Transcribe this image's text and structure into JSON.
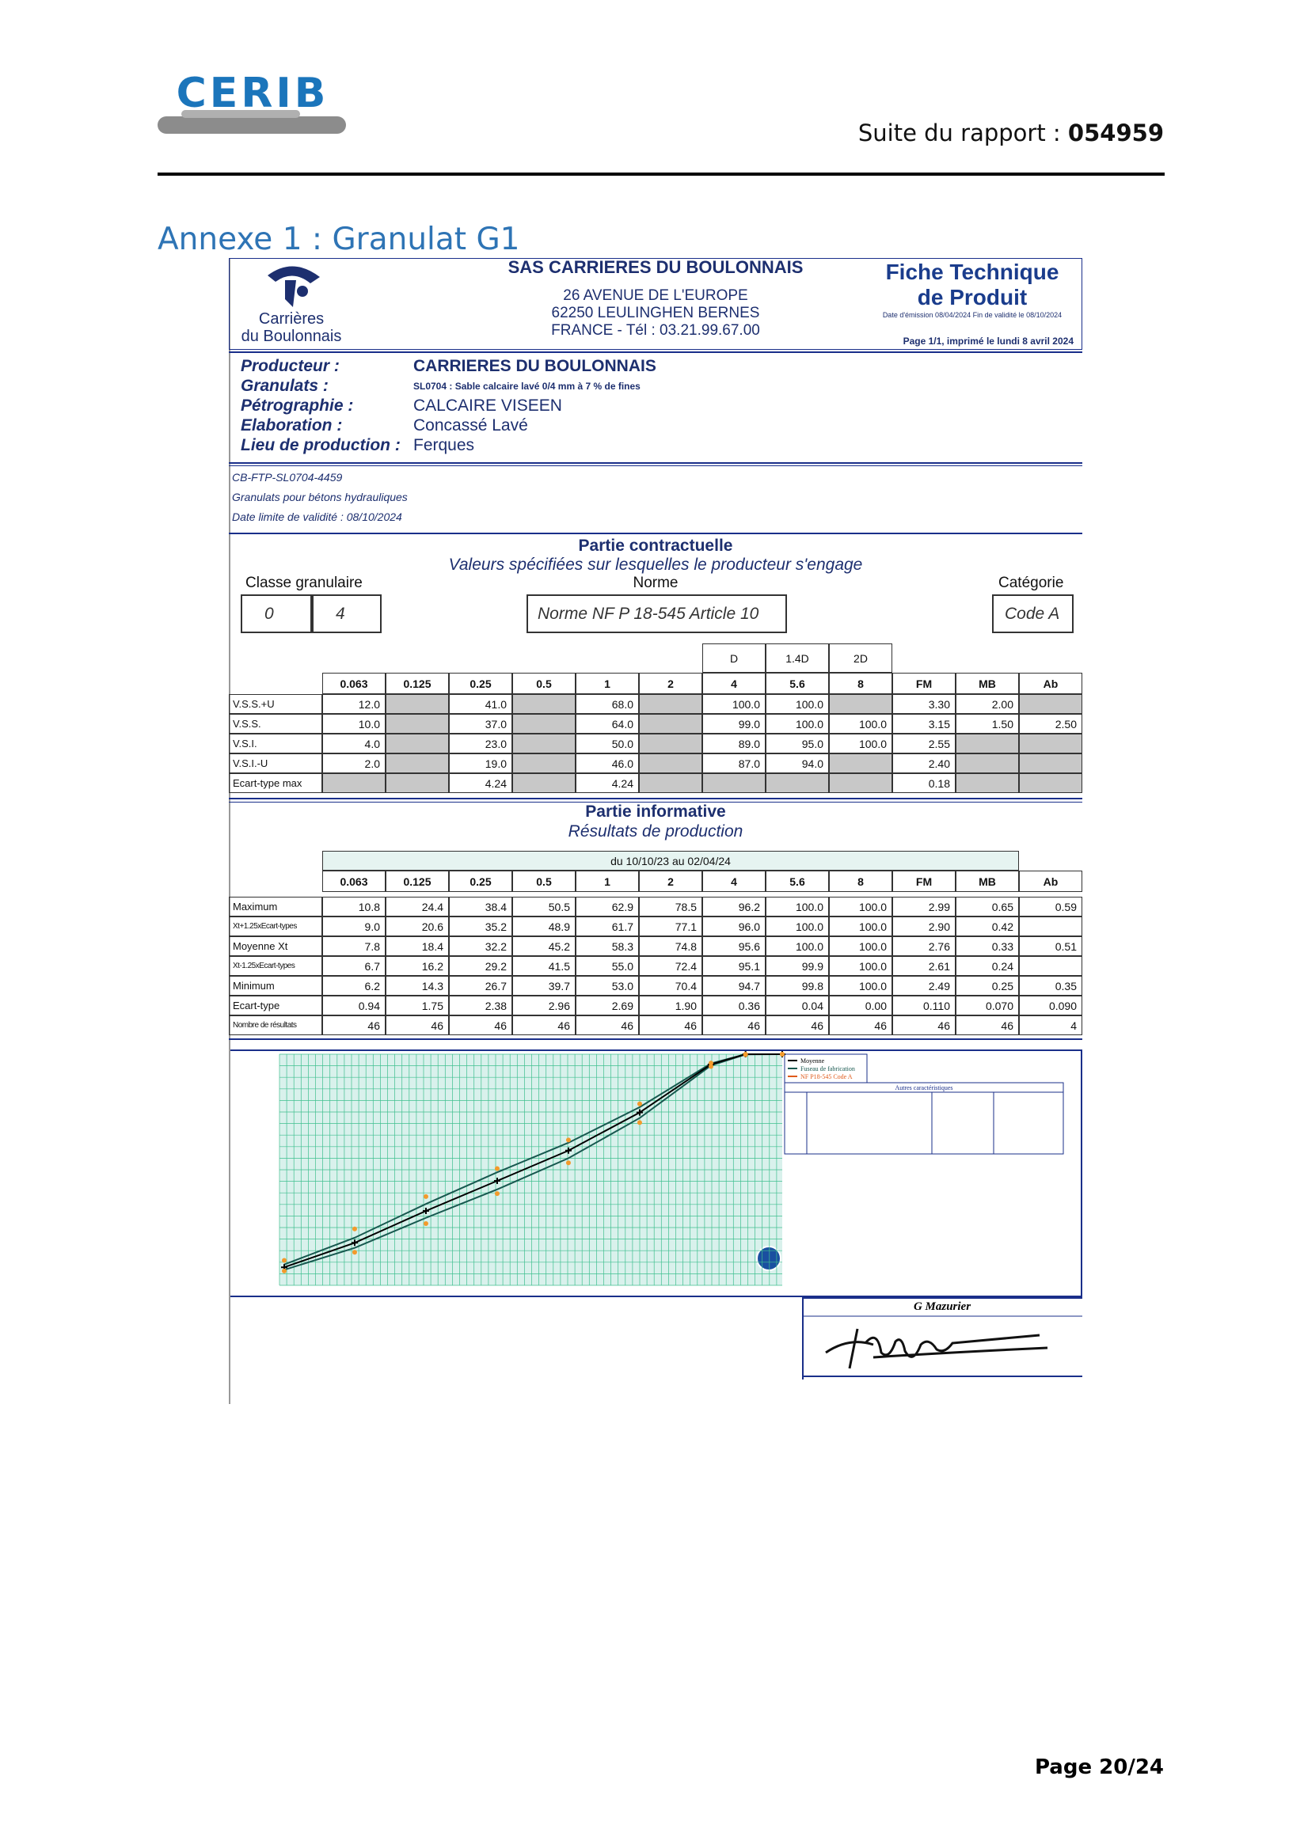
{
  "header": {
    "logo": "CERIB",
    "report_label": "Suite du rapport :",
    "report_number": "054959"
  },
  "annex_title": "Annexe 1 : Granulat G1",
  "sheet": {
    "company_logo": [
      "Carrières",
      "du Boulonnais"
    ],
    "company_name": "SAS CARRIERES DU BOULONNAIS",
    "address": [
      "26 AVENUE DE L'EUROPE",
      "62250 LEULINGHEN BERNES",
      "FRANCE - Tél : 03.21.99.67.00"
    ],
    "doc_title": [
      "Fiche Technique",
      "de Produit"
    ],
    "dates": "Date d'émission 08/04/2024   Fin de validité le 08/10/2024",
    "printed": "Page 1/1, imprimé le lundi 8 avril 2024",
    "product": [
      {
        "label": "Producteur :",
        "value": "CARRIERES DU BOULONNAIS"
      },
      {
        "label": "Granulats :",
        "value": "SL0704 : Sable calcaire lavé 0/4 mm à 7 % de fines"
      },
      {
        "label": "Pétrographie :",
        "value": "CALCAIRE VISEEN"
      },
      {
        "label": "Elaboration :",
        "value": "Concassé Lavé"
      },
      {
        "label": "Lieu de production :",
        "value": "Ferques"
      }
    ],
    "references": [
      "CB-FTP-SL0704-4459",
      "Granulats pour bétons hydrauliques",
      "Date limite de validité : 08/10/2024"
    ],
    "columns": [
      "0.063",
      "0.125",
      "0.25",
      "0.5",
      "1",
      "2",
      "4",
      "5.6",
      "8",
      "FM",
      "MB",
      "Ab"
    ],
    "contractual": {
      "title": "Partie contractuelle",
      "subtitle": "Valeurs spécifiées sur lesquelles le producteur s'engage",
      "class_label": "Classe granulaire",
      "class_values": [
        "0",
        "4"
      ],
      "norm_label": "Norme",
      "norm": "Norme NF P 18-545 Article 10",
      "category_label": "Catégorie",
      "category": "Code A",
      "sieve_marks": [
        "D",
        "1.4D",
        "2D"
      ],
      "rows": [
        {
          "label": "V.S.S.+U",
          "values": [
            "12.0",
            null,
            "41.0",
            null,
            "68.0",
            null,
            "100.0",
            "100.0",
            null,
            "3.30",
            "2.00",
            null
          ]
        },
        {
          "label": "V.S.S.",
          "values": [
            "10.0",
            null,
            "37.0",
            null,
            "64.0",
            null,
            "99.0",
            "100.0",
            "100.0",
            "3.15",
            "1.50",
            "2.50"
          ]
        },
        {
          "label": "V.S.I.",
          "values": [
            "4.0",
            null,
            "23.0",
            null,
            "50.0",
            null,
            "89.0",
            "95.0",
            "100.0",
            "2.55",
            null,
            null
          ]
        },
        {
          "label": "V.S.I.-U",
          "values": [
            "2.0",
            null,
            "19.0",
            null,
            "46.0",
            null,
            "87.0",
            "94.0",
            null,
            "2.40",
            null,
            null
          ]
        },
        {
          "label": "Ecart-type max",
          "values": [
            null,
            null,
            "4.24",
            null,
            "4.24",
            null,
            null,
            null,
            null,
            "0.18",
            null,
            null
          ]
        }
      ]
    },
    "informative": {
      "title": "Partie informative",
      "subtitle": "Résultats de production",
      "period": "du 10/10/23 au 02/04/24",
      "rows": [
        {
          "label": "Maximum",
          "values": [
            "10.8",
            "24.4",
            "38.4",
            "50.5",
            "62.9",
            "78.5",
            "96.2",
            "100.0",
            "100.0",
            "2.99",
            "0.65",
            "0.59"
          ]
        },
        {
          "label": "Xt+1.25xEcart-types",
          "values": [
            "9.0",
            "20.6",
            "35.2",
            "48.9",
            "61.7",
            "77.1",
            "96.0",
            "100.0",
            "100.0",
            "2.90",
            "0.42",
            null
          ]
        },
        {
          "label": "Moyenne Xt",
          "values": [
            "7.8",
            "18.4",
            "32.2",
            "45.2",
            "58.3",
            "74.8",
            "95.6",
            "100.0",
            "100.0",
            "2.76",
            "0.33",
            "0.51"
          ]
        },
        {
          "label": "Xt-1.25xEcart-types",
          "values": [
            "6.7",
            "16.2",
            "29.2",
            "41.5",
            "55.0",
            "72.4",
            "95.1",
            "99.9",
            "100.0",
            "2.61",
            "0.24",
            null
          ]
        },
        {
          "label": "Minimum",
          "values": [
            "6.2",
            "14.3",
            "26.7",
            "39.7",
            "53.0",
            "70.4",
            "94.7",
            "99.8",
            "100.0",
            "2.49",
            "0.25",
            "0.35"
          ]
        },
        {
          "label": "Ecart-type",
          "values": [
            "0.94",
            "1.75",
            "2.38",
            "2.96",
            "2.69",
            "1.90",
            "0.36",
            "0.04",
            "0.00",
            "0.110",
            "0.070",
            "0.090"
          ]
        },
        {
          "label": "Nombre de résultats",
          "values": [
            "46",
            "46",
            "46",
            "46",
            "46",
            "46",
            "46",
            "46",
            "46",
            "46",
            "46",
            "4"
          ]
        }
      ]
    },
    "chart": {
      "legend": [
        "Moyenne",
        "Fuseau de fabrication",
        "NF P18-545 Code A"
      ],
      "table_title": "Autres caractéristiques"
    },
    "signature": "G Mazurier"
  },
  "footer": {
    "page": "Page 20/24"
  }
}
